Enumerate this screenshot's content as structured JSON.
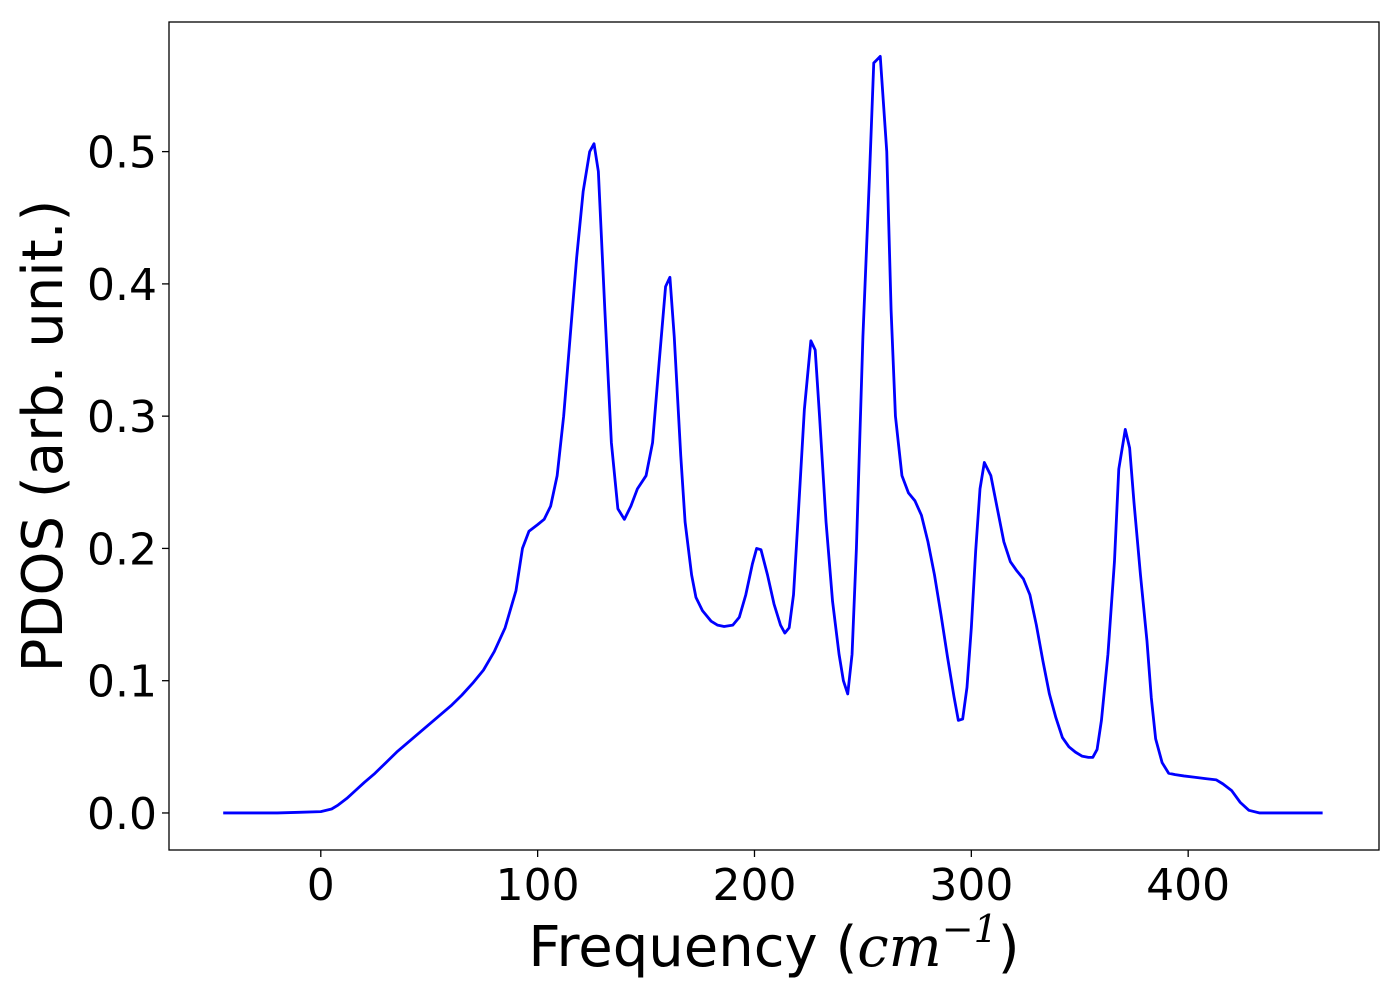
{
  "chart_data": {
    "type": "line",
    "xlabel_prefix": "Frequency (",
    "xlabel_unit": "cm",
    "xlabel_exp": "−1",
    "xlabel_suffix": ")",
    "ylabel": "PDOS (arb. unit.)",
    "xlim": [
      -70,
      488
    ],
    "ylim": [
      -0.028,
      0.598
    ],
    "xticks": [
      0,
      100,
      200,
      300,
      400
    ],
    "xtick_labels": [
      "0",
      "100",
      "200",
      "300",
      "400"
    ],
    "yticks": [
      0.0,
      0.1,
      0.2,
      0.3,
      0.4,
      0.5
    ],
    "ytick_labels": [
      "0.0",
      "0.1",
      "0.2",
      "0.3",
      "0.4",
      "0.5"
    ],
    "grid": false,
    "color": "#0000ff",
    "series": [
      {
        "x": [
          -45,
          -20,
          -10,
          0,
          5,
          8,
          12,
          16,
          20,
          25,
          30,
          35,
          40,
          45,
          50,
          55,
          60,
          65,
          70,
          75,
          80,
          85,
          90,
          93,
          96,
          100,
          103,
          106,
          109,
          112,
          115,
          118,
          121,
          124,
          126,
          128,
          131,
          134,
          137,
          140,
          143,
          146,
          150,
          153,
          156,
          159,
          161,
          163,
          166,
          168,
          171,
          173,
          176,
          180,
          183,
          186,
          190,
          193,
          196,
          199,
          201,
          203,
          206,
          209,
          212,
          214,
          216,
          218,
          220,
          223,
          226,
          228,
          230,
          233,
          236,
          239,
          241,
          243,
          245,
          247,
          250,
          253,
          255,
          258,
          261,
          263,
          265,
          268,
          271,
          274,
          277,
          280,
          283,
          286,
          289,
          292,
          294,
          296,
          298,
          300,
          302,
          304,
          306,
          309,
          312,
          315,
          318,
          321,
          324,
          327,
          330,
          333,
          336,
          339,
          342,
          345,
          348,
          351,
          354,
          356,
          358,
          360,
          363,
          366,
          368,
          371,
          373,
          375,
          378,
          381,
          383,
          385,
          388,
          391,
          394,
          398,
          403,
          408,
          413,
          416,
          420,
          424,
          428,
          433,
          440,
          450,
          462
        ],
        "y": [
          0.0,
          0.0,
          0.0005,
          0.001,
          0.003,
          0.006,
          0.011,
          0.017,
          0.023,
          0.03,
          0.038,
          0.046,
          0.053,
          0.06,
          0.067,
          0.074,
          0.081,
          0.089,
          0.098,
          0.108,
          0.122,
          0.14,
          0.168,
          0.2,
          0.213,
          0.218,
          0.222,
          0.232,
          0.255,
          0.3,
          0.36,
          0.42,
          0.47,
          0.5,
          0.506,
          0.485,
          0.38,
          0.28,
          0.23,
          0.222,
          0.232,
          0.245,
          0.255,
          0.28,
          0.34,
          0.398,
          0.405,
          0.36,
          0.27,
          0.22,
          0.18,
          0.163,
          0.153,
          0.145,
          0.142,
          0.141,
          0.142,
          0.148,
          0.165,
          0.188,
          0.2,
          0.199,
          0.18,
          0.158,
          0.142,
          0.136,
          0.14,
          0.165,
          0.22,
          0.305,
          0.357,
          0.35,
          0.3,
          0.22,
          0.16,
          0.12,
          0.1,
          0.09,
          0.12,
          0.2,
          0.36,
          0.48,
          0.567,
          0.572,
          0.5,
          0.38,
          0.3,
          0.255,
          0.242,
          0.236,
          0.225,
          0.205,
          0.18,
          0.15,
          0.118,
          0.088,
          0.07,
          0.071,
          0.095,
          0.14,
          0.198,
          0.245,
          0.265,
          0.255,
          0.23,
          0.205,
          0.19,
          0.183,
          0.177,
          0.165,
          0.142,
          0.115,
          0.09,
          0.072,
          0.057,
          0.05,
          0.046,
          0.043,
          0.042,
          0.042,
          0.048,
          0.07,
          0.12,
          0.19,
          0.26,
          0.29,
          0.276,
          0.235,
          0.18,
          0.13,
          0.087,
          0.056,
          0.038,
          0.03,
          0.029,
          0.028,
          0.027,
          0.026,
          0.025,
          0.022,
          0.017,
          0.008,
          0.002,
          0.0,
          0.0,
          0.0,
          0.0
        ]
      }
    ]
  }
}
